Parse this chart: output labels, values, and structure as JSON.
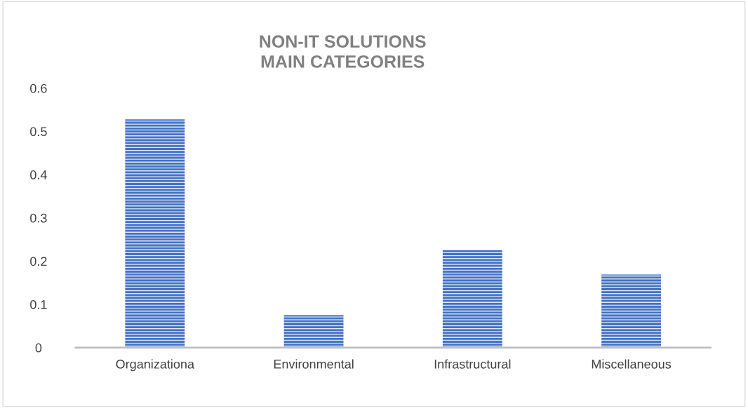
{
  "chart_data": {
    "type": "bar",
    "title": "NON-IT SOLUTIONS\nMAIN CATEGORIES",
    "categories": [
      "Organizationa",
      "Environmental",
      "Infrastructural",
      "Miscellaneous"
    ],
    "values": [
      0.528,
      0.075,
      0.225,
      0.169
    ],
    "color": "#4472c4",
    "ylim": [
      0,
      0.6
    ],
    "yticks": [
      0,
      0.1,
      0.2,
      0.3,
      0.4,
      0.5,
      0.6
    ],
    "grid": false,
    "legend": false
  }
}
